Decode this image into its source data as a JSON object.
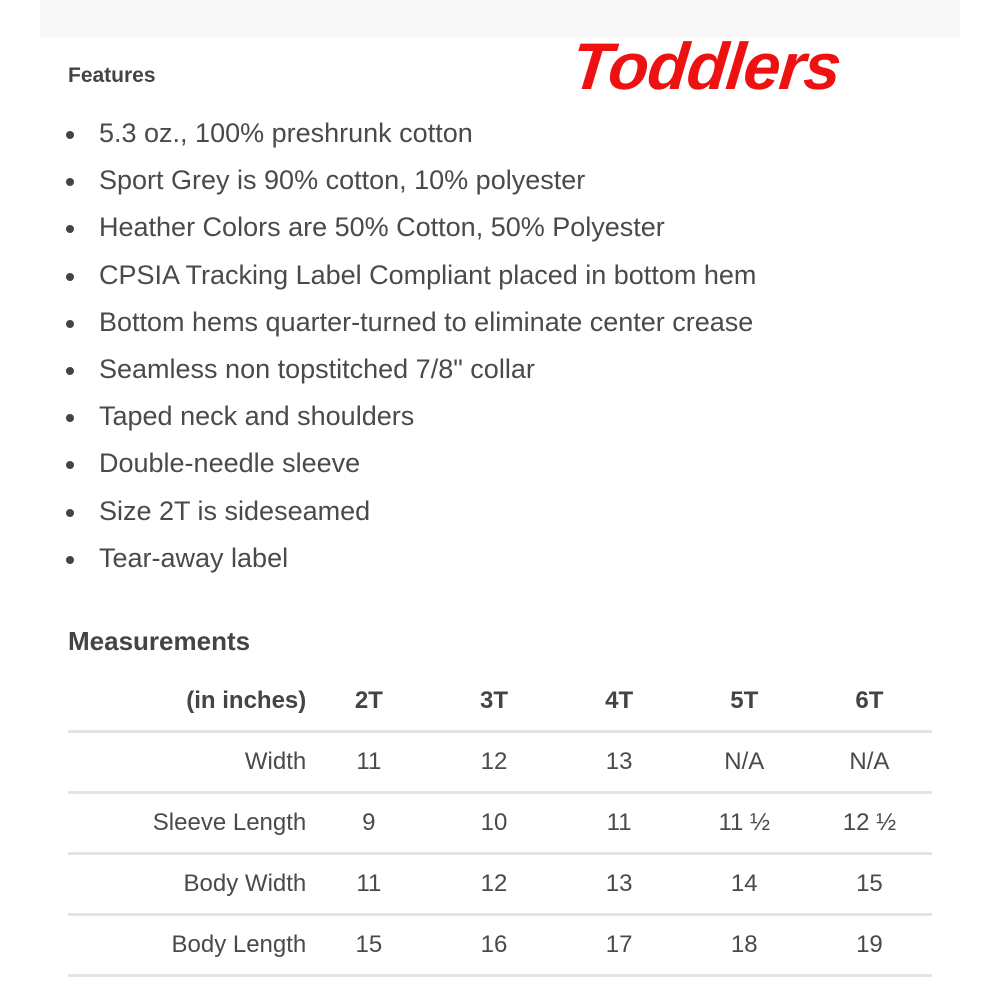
{
  "logo_text": "Toddlers",
  "features": {
    "heading": "Features",
    "items": [
      "5.3 oz., 100% preshrunk cotton",
      "Sport Grey is 90% cotton, 10% polyester",
      "Heather Colors are 50% Cotton, 50% Polyester",
      "CPSIA Tracking Label Compliant placed in bottom hem",
      "Bottom hems quarter-turned to eliminate center crease",
      "Seamless non topstitched 7/8\" collar",
      "Taped neck and shoulders",
      "Double-needle sleeve",
      "Size 2T is sideseamed",
      "Tear-away label"
    ]
  },
  "measurements": {
    "heading": "Measurements",
    "headers": [
      "(in inches)",
      "2T",
      "3T",
      "4T",
      "5T",
      "6T"
    ],
    "rows": [
      [
        "Width",
        "11",
        "12",
        "13",
        "N/A",
        "N/A"
      ],
      [
        "Sleeve Length",
        "9",
        "10",
        "11",
        "11 ½",
        "12 ½"
      ],
      [
        "Body Width",
        "11",
        "12",
        "13",
        "14",
        "15"
      ],
      [
        "Body Length",
        "15",
        "16",
        "17",
        "18",
        "19"
      ]
    ]
  },
  "colors": {
    "logo": "#ee1111",
    "text": "#444444",
    "rule": "#e4e4e4"
  }
}
